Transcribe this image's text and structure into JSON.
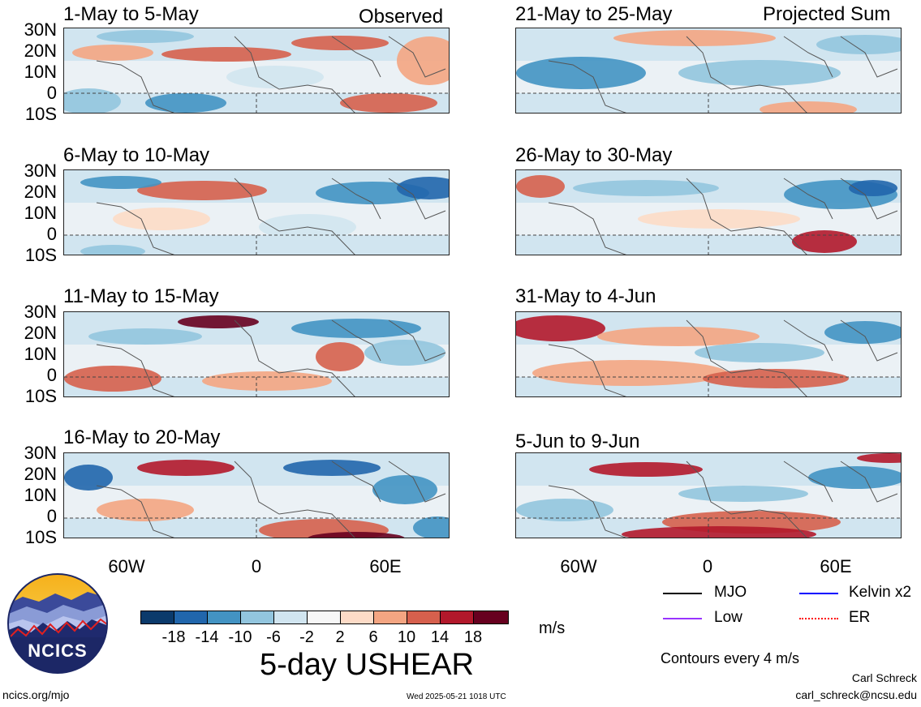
{
  "colors": {
    "neg18": "#0b3a6b",
    "neg14": "#2166ac",
    "neg10": "#4393c3",
    "neg6": "#92c5de",
    "neg2": "#d1e5f0",
    "zero": "#f7f7f7",
    "pos2": "#fddbc7",
    "pos6": "#f4a582",
    "pos10": "#d6604d",
    "pos14": "#b2182b",
    "pos18": "#67001f",
    "mjo": "#000000",
    "low": "#9933ff",
    "kelvin": "#0000ff",
    "er": "#ff0000"
  },
  "tags": {
    "observed": "Observed",
    "projected": "Projected Sum"
  },
  "panels": [
    {
      "title": "1-May to 5-May"
    },
    {
      "title": "6-May to 10-May"
    },
    {
      "title": "11-May to 15-May"
    },
    {
      "title": "16-May to 20-May"
    },
    {
      "title": "21-May to 25-May"
    },
    {
      "title": "26-May to 30-May"
    },
    {
      "title": "31-May to 4-Jun"
    },
    {
      "title": "5-Jun to 9-Jun"
    }
  ],
  "lat_labels": [
    "30N",
    "20N",
    "10N",
    "0",
    "10S"
  ],
  "lon_labels": [
    "60W",
    "0",
    "60E"
  ],
  "colorbar": {
    "labels": [
      "-18",
      "-14",
      "-10",
      "-6",
      "-2",
      "2",
      "6",
      "10",
      "14",
      "18"
    ],
    "units": "m/s",
    "title": "5-day USHEAR"
  },
  "legend": {
    "mjo": "MJO",
    "kelvin": "Kelvin x2",
    "low": "Low",
    "er": "ER",
    "contours": "Contours every 4 m/s"
  },
  "logo": {
    "text": "NCICS"
  },
  "footer": {
    "url": "ncics.org/mjo",
    "timestamp": "Wed 2025-05-21 1018 UTC",
    "author": "Carl Schreck",
    "email": "carl_schreck@ncsu.edu"
  }
}
